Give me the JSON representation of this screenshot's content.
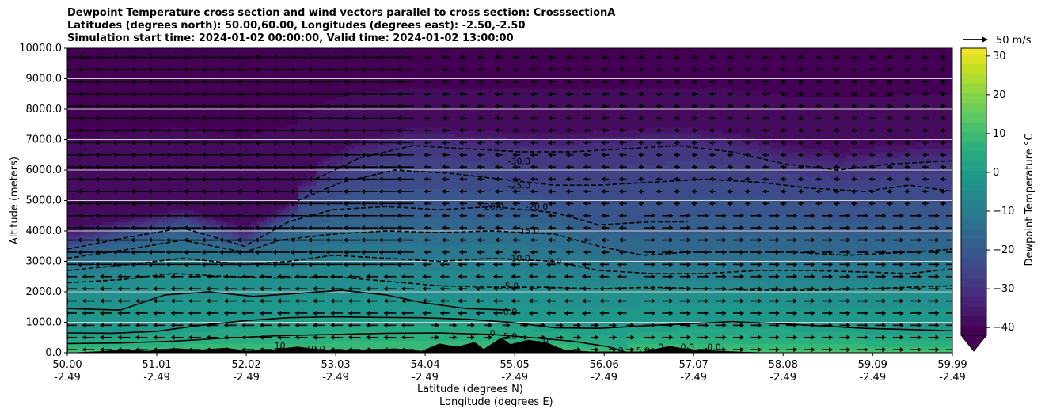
{
  "header": {
    "title_lines": [
      "Dewpoint Temperature cross section and wind vectors parallel to cross section: CrosssectionA",
      "Latitudes (degrees north): 50.00,60.00, Longitudes (degrees east): -2.50,-2.50",
      "Simulation start time: 2024-01-02 00:00:00, Valid time: 2024-01-02 13:00:00"
    ]
  },
  "colors": {
    "cmap": [
      "#440154",
      "#482173",
      "#433e85",
      "#38588c",
      "#2d708e",
      "#25858e",
      "#1e9b8a",
      "#2ab07f",
      "#52c569",
      "#86d549",
      "#c2df23",
      "#fde725"
    ],
    "contour": "#000000",
    "terrain": "#000000",
    "gridline": "#d0d0d0"
  },
  "chart_data": {
    "type": "contour",
    "xlabel": "Latitude (degrees N)",
    "xlabel2": "Longitude (degrees E)",
    "ylabel": "Altitude (meters)",
    "ylim": [
      0,
      10000
    ],
    "xlim": [
      50.0,
      59.99
    ],
    "grid": "horizontal",
    "x_ticks": [
      {
        "lat": "50.00",
        "lon": "-2.49",
        "value": 50.0
      },
      {
        "lat": "51.01",
        "lon": "-2.49",
        "value": 51.01
      },
      {
        "lat": "52.02",
        "lon": "-2.49",
        "value": 52.02
      },
      {
        "lat": "53.03",
        "lon": "-2.49",
        "value": 53.03
      },
      {
        "lat": "54.04",
        "lon": "-2.49",
        "value": 54.04
      },
      {
        "lat": "55.05",
        "lon": "-2.49",
        "value": 55.05
      },
      {
        "lat": "56.06",
        "lon": "-2.49",
        "value": 56.06
      },
      {
        "lat": "57.07",
        "lon": "-2.49",
        "value": 57.07
      },
      {
        "lat": "58.08",
        "lon": "-2.49",
        "value": 58.08
      },
      {
        "lat": "59.09",
        "lon": "-2.49",
        "value": 59.09
      },
      {
        "lat": "59.99",
        "lon": "-2.49",
        "value": 59.99
      }
    ],
    "y_ticks": [
      {
        "label": "0.0",
        "value": 0
      },
      {
        "label": "1000.0",
        "value": 1000
      },
      {
        "label": "2000.0",
        "value": 2000
      },
      {
        "label": "3000.0",
        "value": 3000
      },
      {
        "label": "4000.0",
        "value": 4000
      },
      {
        "label": "5000.0",
        "value": 5000
      },
      {
        "label": "6000.0",
        "value": 6000
      },
      {
        "label": "7000.0",
        "value": 7000
      },
      {
        "label": "8000.0",
        "value": 8000
      },
      {
        "label": "9000.0",
        "value": 9000
      },
      {
        "label": "10000.0",
        "value": 10000
      }
    ],
    "colorbar": {
      "label": "Dewpoint Temperature $^\\circ$C",
      "label_display": "Dewpoint Temperature °C",
      "ticks": [
        {
          "label": "30",
          "value": 30
        },
        {
          "label": "20",
          "value": 20
        },
        {
          "label": "10",
          "value": 10
        },
        {
          "label": "0",
          "value": 0
        },
        {
          "label": "−10",
          "value": -10
        },
        {
          "label": "−20",
          "value": -20
        },
        {
          "label": "−30",
          "value": -30
        },
        {
          "label": "−40",
          "value": -40
        }
      ],
      "range": [
        -42,
        32
      ],
      "extend": "min"
    },
    "wind_key": {
      "label": "50 m/s",
      "speed": 50
    },
    "contours": [
      {
        "level": 5.0,
        "style": "solid",
        "points": [
          [
            50.0,
            300
          ],
          [
            50.6,
            320
          ],
          [
            51.2,
            380
          ],
          [
            51.8,
            480
          ],
          [
            52.4,
            560
          ],
          [
            53.0,
            600
          ],
          [
            53.6,
            640
          ],
          [
            54.2,
            650
          ],
          [
            54.8,
            600
          ],
          [
            55.3,
            480
          ],
          [
            55.7,
            380
          ],
          [
            56.1,
            200
          ],
          [
            56.3,
            20
          ]
        ]
      },
      {
        "level": 0.0,
        "style": "solid",
        "points": [
          [
            50.0,
            650
          ],
          [
            50.5,
            640
          ],
          [
            51.0,
            700
          ],
          [
            51.5,
            900
          ],
          [
            52.0,
            1050
          ],
          [
            52.5,
            1150
          ],
          [
            53.0,
            1180
          ],
          [
            53.5,
            1160
          ],
          [
            54.0,
            1150
          ],
          [
            54.5,
            1100
          ],
          [
            55.0,
            1000
          ],
          [
            55.5,
            820
          ],
          [
            56.0,
            800
          ],
          [
            56.5,
            880
          ],
          [
            57.0,
            950
          ],
          [
            57.5,
            1020
          ],
          [
            58.0,
            960
          ],
          [
            58.5,
            880
          ],
          [
            59.0,
            800
          ],
          [
            59.5,
            760
          ],
          [
            59.99,
            720
          ]
        ]
      },
      {
        "level": 0.0,
        "style": "solid",
        "points": [
          [
            50.0,
            1450
          ],
          [
            50.6,
            1400
          ],
          [
            51.1,
            1900
          ],
          [
            51.6,
            2000
          ],
          [
            52.1,
            1850
          ],
          [
            52.6,
            1950
          ],
          [
            53.1,
            2050
          ],
          [
            53.6,
            1900
          ],
          [
            54.0,
            1650
          ],
          [
            54.5,
            1450
          ],
          [
            55.0,
            1400
          ]
        ]
      },
      {
        "level": -5.0,
        "style": "dashed",
        "points": [
          [
            50.0,
            2300
          ],
          [
            50.6,
            2400
          ],
          [
            51.2,
            2600
          ],
          [
            51.8,
            2500
          ],
          [
            52.4,
            2450
          ],
          [
            53.0,
            2500
          ],
          [
            53.6,
            2350
          ],
          [
            54.2,
            2200
          ],
          [
            54.8,
            2150
          ],
          [
            55.4,
            2150
          ],
          [
            56.0,
            2100
          ],
          [
            56.6,
            2150
          ],
          [
            57.2,
            2100
          ],
          [
            57.8,
            2050
          ],
          [
            58.4,
            2050
          ],
          [
            59.0,
            2100
          ],
          [
            59.5,
            2150
          ],
          [
            59.99,
            2200
          ]
        ]
      },
      {
        "level": -10.0,
        "style": "dashed",
        "points": [
          [
            50.0,
            2700
          ],
          [
            50.7,
            2900
          ],
          [
            51.3,
            3100
          ],
          [
            52.0,
            2900
          ],
          [
            52.5,
            3000
          ],
          [
            53.0,
            3200
          ],
          [
            53.6,
            3100
          ],
          [
            54.2,
            3000
          ],
          [
            54.8,
            3100
          ],
          [
            55.5,
            3000
          ],
          [
            56.0,
            2700
          ],
          [
            56.6,
            2600
          ],
          [
            57.2,
            2600
          ],
          [
            57.8,
            2700
          ],
          [
            58.4,
            2700
          ],
          [
            59.0,
            2650
          ],
          [
            59.5,
            2600
          ],
          [
            59.99,
            2750
          ]
        ]
      },
      {
        "level": -15.0,
        "style": "dashed",
        "points": [
          [
            50.0,
            3100
          ],
          [
            50.7,
            3400
          ],
          [
            51.3,
            3700
          ],
          [
            52.0,
            3300
          ],
          [
            52.4,
            3700
          ],
          [
            53.0,
            3900
          ],
          [
            53.6,
            4000
          ],
          [
            54.2,
            3950
          ],
          [
            54.8,
            4000
          ],
          [
            55.5,
            3900
          ],
          [
            56.0,
            3500
          ],
          [
            56.5,
            3200
          ],
          [
            57.0,
            3300
          ],
          [
            57.6,
            3300
          ],
          [
            58.2,
            3300
          ],
          [
            58.8,
            3200
          ],
          [
            59.5,
            3300
          ],
          [
            59.99,
            3400
          ]
        ]
      },
      {
        "level": -20.0,
        "style": "dashed",
        "points": [
          [
            50.0,
            3400
          ],
          [
            50.7,
            3800
          ],
          [
            51.3,
            4100
          ],
          [
            52.0,
            3500
          ],
          [
            52.5,
            4300
          ],
          [
            53.0,
            4700
          ],
          [
            53.6,
            4800
          ],
          [
            54.2,
            4700
          ],
          [
            54.8,
            4800
          ],
          [
            55.5,
            4600
          ],
          [
            56.0,
            4200
          ],
          [
            56.6,
            4300
          ],
          [
            57.0,
            4300
          ]
        ]
      },
      {
        "level": -25.0,
        "style": "dashed",
        "points": [
          [
            52.6,
            5000
          ],
          [
            53.1,
            5600
          ],
          [
            53.7,
            6000
          ],
          [
            54.3,
            5900
          ],
          [
            54.9,
            5700
          ],
          [
            55.5,
            5500
          ],
          [
            56.0,
            5500
          ],
          [
            56.6,
            5600
          ],
          [
            57.2,
            5700
          ],
          [
            57.8,
            5600
          ],
          [
            58.4,
            5400
          ],
          [
            59.0,
            5300
          ],
          [
            59.5,
            5500
          ],
          [
            59.99,
            5300
          ]
        ]
      },
      {
        "level": -30.0,
        "style": "dashed",
        "points": [
          [
            52.8,
            5700
          ],
          [
            53.3,
            6400
          ],
          [
            53.9,
            6800
          ],
          [
            54.5,
            6700
          ],
          [
            55.1,
            6600
          ],
          [
            55.7,
            6600
          ],
          [
            56.3,
            6700
          ],
          [
            56.9,
            6800
          ],
          [
            57.5,
            6600
          ],
          [
            58.1,
            6200
          ],
          [
            58.7,
            6000
          ],
          [
            59.3,
            6200
          ],
          [
            59.99,
            6300
          ]
        ]
      }
    ],
    "contour_labels": [
      {
        "text": "-30.0",
        "x": 55.1,
        "y": 6300
      },
      {
        "text": "-25.0",
        "x": 55.1,
        "y": 5500
      },
      {
        "text": "-20.0",
        "x": 54.8,
        "y": 4800
      },
      {
        "text": "-20.0",
        "x": 55.3,
        "y": 4800
      },
      {
        "text": "-15.0",
        "x": 55.2,
        "y": 4000
      },
      {
        "text": "-10.0",
        "x": 55.1,
        "y": 3100
      },
      {
        "text": "0.0",
        "x": 55.5,
        "y": 3000
      },
      {
        "text": "-5.0",
        "x": 55.0,
        "y": 2200
      },
      {
        "text": "0.0",
        "x": 55.0,
        "y": 1350
      },
      {
        "text": "5.0",
        "x": 55.0,
        "y": 550
      },
      {
        "text": "0",
        "x": 54.8,
        "y": 650
      },
      {
        "text": "10",
        "x": 52.4,
        "y": 230
      },
      {
        "text": "10.0",
        "x": 52.8,
        "y": 130
      },
      {
        "text": "5.0",
        "x": 56.2,
        "y": 80
      },
      {
        "text": "5.0",
        "x": 56.5,
        "y": 80
      },
      {
        "text": "0",
        "x": 56.7,
        "y": 200
      },
      {
        "text": "0.0",
        "x": 57.0,
        "y": 200
      },
      {
        "text": "0.0",
        "x": 57.3,
        "y": 200
      },
      {
        "text": "0",
        "x": 55.4,
        "y": 400
      }
    ],
    "terrain": [
      [
        50.0,
        0
      ],
      [
        50.4,
        50
      ],
      [
        50.6,
        120
      ],
      [
        50.9,
        60
      ],
      [
        51.2,
        150
      ],
      [
        51.5,
        100
      ],
      [
        51.8,
        160
      ],
      [
        52.0,
        60
      ],
      [
        52.3,
        100
      ],
      [
        52.6,
        200
      ],
      [
        52.9,
        80
      ],
      [
        53.3,
        100
      ],
      [
        53.7,
        140
      ],
      [
        54.0,
        60
      ],
      [
        54.2,
        300
      ],
      [
        54.4,
        200
      ],
      [
        54.6,
        350
      ],
      [
        54.7,
        120
      ],
      [
        54.9,
        500
      ],
      [
        55.0,
        280
      ],
      [
        55.2,
        420
      ],
      [
        55.4,
        350
      ],
      [
        55.6,
        100
      ],
      [
        55.9,
        40
      ],
      [
        56.5,
        40
      ],
      [
        56.8,
        220
      ],
      [
        57.0,
        120
      ],
      [
        57.2,
        80
      ],
      [
        57.6,
        30
      ],
      [
        58.0,
        0
      ],
      [
        59.99,
        0
      ]
    ]
  }
}
